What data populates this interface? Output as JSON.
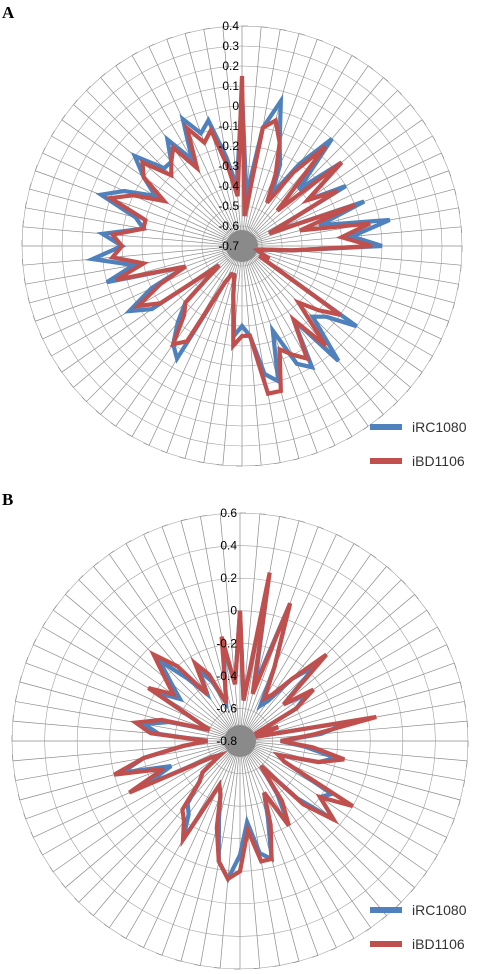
{
  "chart_data": [
    {
      "type": "radar",
      "panel_label": "A",
      "rlim": [
        -0.7,
        0.4
      ],
      "ticks": [
        "0.4",
        "0.3",
        "0.2",
        "0.1",
        "0",
        "-0.1",
        "-0.2",
        "-0.3",
        "-0.4",
        "-0.5",
        "-0.6",
        "-0.7"
      ],
      "n_axes": 72,
      "legend_position": "bottom-right",
      "series": [
        {
          "name": "iRC1080",
          "color": "#4F81BD",
          "values": [
            0.07,
            -0.45,
            -0.1,
            0.05,
            -0.15,
            -0.25,
            -0.4,
            -0.2,
            0.0,
            -0.3,
            -0.05,
            -0.3,
            -0.1,
            -0.55,
            -0.05,
            -0.3,
            0.05,
            -0.15,
            0.0,
            -0.45,
            -0.6,
            -0.62,
            -0.6,
            -0.55,
            -0.6,
            0.0,
            -0.15,
            -0.2,
            0.05,
            -0.25,
            0.0,
            -0.05,
            -0.25,
            0.0,
            -0.05,
            -0.25,
            -0.3,
            -0.25,
            -0.45,
            -0.55,
            -0.55,
            -0.5,
            -0.05,
            -0.1,
            -0.2,
            -0.3,
            -0.55,
            -0.15,
            -0.05,
            -0.2,
            -0.4,
            0.0,
            -0.15,
            0.05,
            -0.1,
            0.0,
            -0.2,
            -0.15,
            0.05,
            -0.05,
            -0.2,
            -0.1,
            0.0,
            -0.15,
            -0.15,
            -0.05,
            -0.2,
            0.0,
            -0.1,
            -0.05,
            -0.25,
            -0.4
          ]
        },
        {
          "name": "iBD1106",
          "color": "#C0504D",
          "values": [
            0.15,
            -0.55,
            -0.1,
            -0.05,
            -0.15,
            -0.3,
            -0.45,
            -0.25,
            -0.05,
            -0.45,
            -0.05,
            -0.3,
            -0.15,
            -0.55,
            -0.1,
            -0.4,
            -0.05,
            -0.2,
            -0.05,
            -0.45,
            -0.6,
            -0.62,
            -0.6,
            -0.55,
            -0.6,
            -0.1,
            -0.2,
            -0.3,
            -0.05,
            -0.25,
            -0.05,
            -0.1,
            -0.15,
            0.05,
            0.05,
            -0.25,
            -0.25,
            -0.2,
            -0.45,
            -0.55,
            -0.55,
            -0.5,
            -0.15,
            -0.1,
            -0.25,
            -0.3,
            -0.55,
            -0.2,
            -0.1,
            -0.25,
            -0.4,
            -0.05,
            -0.2,
            -0.05,
            -0.1,
            -0.05,
            -0.2,
            -0.2,
            0.0,
            -0.1,
            -0.25,
            -0.1,
            -0.05,
            -0.2,
            -0.15,
            -0.1,
            -0.25,
            -0.05,
            -0.15,
            -0.1,
            -0.3,
            -0.45
          ]
        }
      ]
    },
    {
      "type": "radar",
      "panel_label": "B",
      "rlim": [
        -0.8,
        0.6
      ],
      "ticks": [
        "0.6",
        "0.4",
        "0.2",
        "0",
        "-0.2",
        "-0.4",
        "-0.6",
        "-0.8"
      ],
      "n_axes": 72,
      "legend_position": "bottom-right",
      "series": [
        {
          "name": "iRC1080",
          "color": "#4F81BD",
          "values": [
            0.0,
            -0.55,
            0.2,
            -0.45,
            0.1,
            -0.3,
            -0.55,
            -0.5,
            -0.3,
            -0.15,
            -0.45,
            -0.3,
            -0.4,
            -0.7,
            -0.55,
            -0.7,
            -0.1,
            -0.3,
            -0.55,
            -0.4,
            -0.2,
            -0.3,
            -0.55,
            -0.5,
            -0.15,
            -0.2,
            -0.05,
            -0.3,
            -0.6,
            -0.4,
            -0.2,
            -0.45,
            -0.3,
            -0.05,
            -0.1,
            -0.3,
            -0.1,
            0.05,
            -0.05,
            -0.3,
            -0.45,
            -0.5,
            -0.1,
            -0.25,
            -0.3,
            -0.45,
            -0.5,
            -0.65,
            -0.6,
            -0.15,
            -0.35,
            -0.05,
            -0.2,
            -0.45,
            -0.6,
            -0.3,
            -0.2,
            -0.35,
            -0.6,
            -0.5,
            -0.2,
            -0.35,
            -0.25,
            -0.1,
            -0.3,
            -0.45,
            -0.3,
            -0.4,
            -0.55,
            -0.45,
            -0.2,
            -0.45
          ]
        },
        {
          "name": "iBD1106",
          "color": "#C0504D",
          "values": [
            0.0,
            -0.55,
            0.25,
            -0.5,
            0.1,
            -0.3,
            -0.5,
            -0.45,
            -0.3,
            -0.05,
            -0.45,
            -0.25,
            -0.4,
            -0.7,
            -0.55,
            -0.7,
            0.05,
            -0.35,
            -0.55,
            -0.35,
            -0.15,
            -0.3,
            -0.55,
            -0.5,
            0.0,
            -0.2,
            -0.05,
            -0.25,
            -0.6,
            -0.35,
            -0.2,
            -0.45,
            -0.25,
            -0.05,
            -0.05,
            -0.25,
            0.0,
            0.05,
            -0.05,
            -0.25,
            -0.45,
            -0.5,
            -0.1,
            -0.2,
            -0.25,
            -0.45,
            -0.5,
            -0.65,
            -0.6,
            -0.05,
            -0.3,
            0.0,
            -0.2,
            -0.45,
            -0.6,
            -0.25,
            -0.15,
            -0.3,
            -0.6,
            -0.5,
            -0.15,
            -0.3,
            -0.2,
            -0.05,
            -0.2,
            -0.45,
            -0.25,
            -0.35,
            -0.55,
            -0.45,
            -0.15,
            -0.45
          ]
        }
      ]
    }
  ]
}
